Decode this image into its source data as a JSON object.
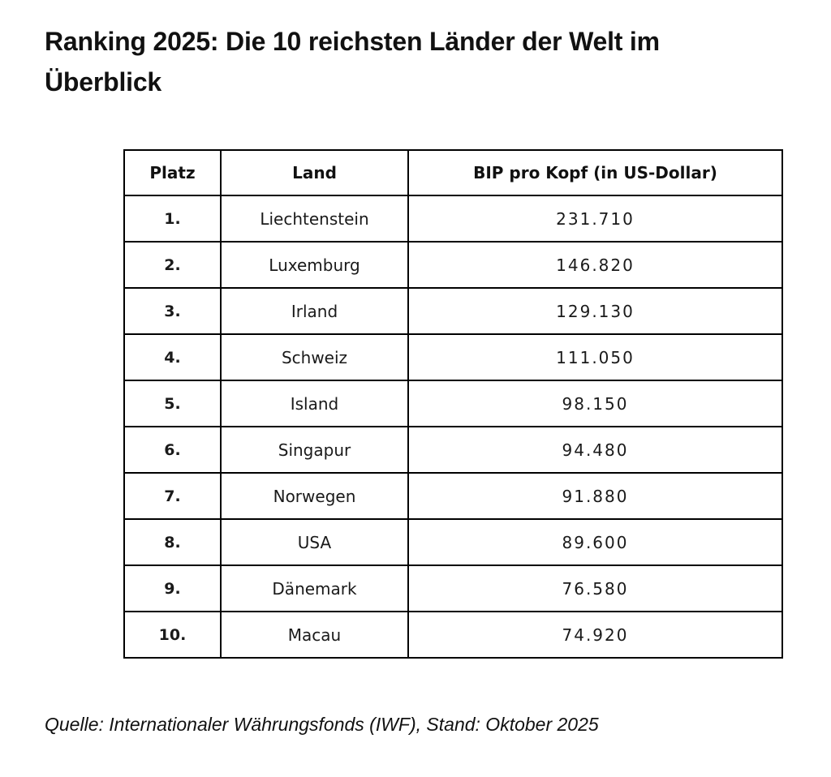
{
  "page": {
    "title": "Ranking 2025: Die 10 reichsten Länder der Welt im Überblick",
    "source_note": "Quelle: Internationaler Währungsfonds (IWF), Stand: Oktober 2025",
    "background_color": "#ffffff",
    "text_color": "#111111",
    "table_border_color": "#000000"
  },
  "table": {
    "columns": [
      "Platz",
      "Land",
      "BIP pro Kopf (in US-Dollar)"
    ],
    "rows": [
      {
        "platz": "1.",
        "land": "Liechtenstein",
        "bip_pro_kopf": "231.710"
      },
      {
        "platz": "2.",
        "land": "Luxemburg",
        "bip_pro_kopf": "146.820"
      },
      {
        "platz": "3.",
        "land": "Irland",
        "bip_pro_kopf": "129.130"
      },
      {
        "platz": "4.",
        "land": "Schweiz",
        "bip_pro_kopf": "111.050"
      },
      {
        "platz": "5.",
        "land": "Island",
        "bip_pro_kopf": "98.150"
      },
      {
        "platz": "6.",
        "land": "Singapur",
        "bip_pro_kopf": "94.480"
      },
      {
        "platz": "7.",
        "land": "Norwegen",
        "bip_pro_kopf": "91.880"
      },
      {
        "platz": "8.",
        "land": "USA",
        "bip_pro_kopf": "89.600"
      },
      {
        "platz": "9.",
        "land": "Dänemark",
        "bip_pro_kopf": "76.580"
      },
      {
        "platz": "10.",
        "land": "Macau",
        "bip_pro_kopf": "74.920"
      }
    ]
  },
  "chart_data": {
    "type": "table",
    "title": "Ranking 2025: Die 10 reichsten Länder der Welt im Überblick",
    "columns": [
      "Platz",
      "Land",
      "BIP pro Kopf (in US-Dollar)"
    ],
    "categories": [
      "Liechtenstein",
      "Luxemburg",
      "Irland",
      "Schweiz",
      "Island",
      "Singapur",
      "Norwegen",
      "USA",
      "Dänemark",
      "Macau"
    ],
    "values": [
      231710,
      146820,
      129130,
      111050,
      98150,
      94480,
      91880,
      89600,
      76580,
      74920
    ],
    "ranks": [
      "1.",
      "2.",
      "3.",
      "4.",
      "5.",
      "6.",
      "7.",
      "8.",
      "9.",
      "10."
    ],
    "value_unit": "BIP pro Kopf in US-Dollar",
    "source": "Quelle: Internationaler Währungsfonds (IWF), Stand: Oktober 2025"
  }
}
